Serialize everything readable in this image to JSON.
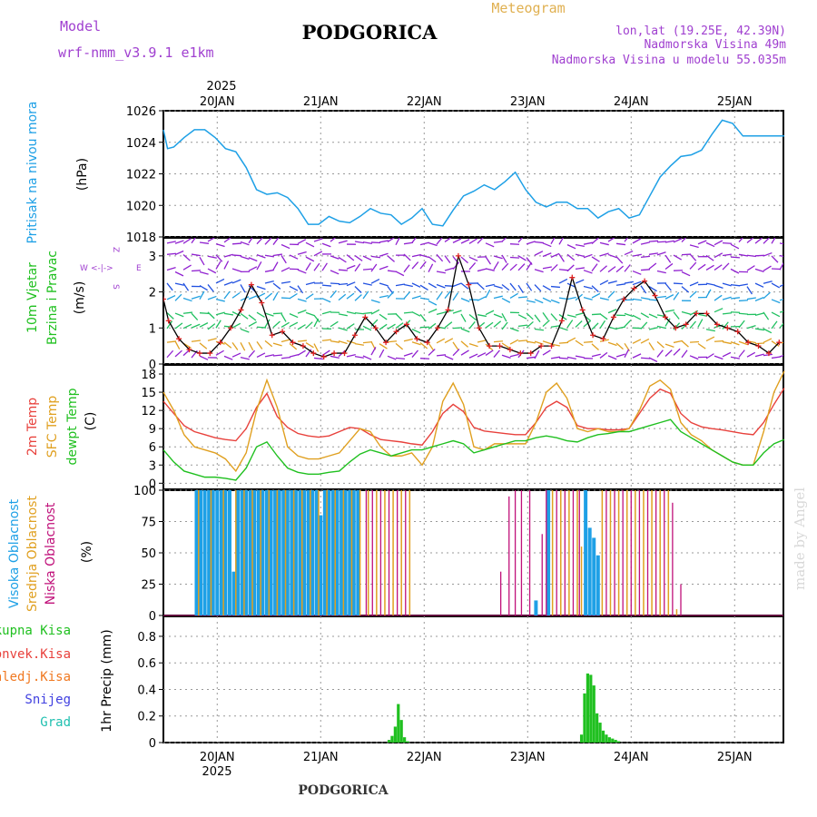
{
  "header": {
    "model_label": "Model",
    "model_name": "wrf-nmm_v3.9.1  e1km",
    "title": "PODGORICA",
    "subtitle": "Meteogram",
    "coords": "lon,lat (19.25E, 42.39N)",
    "elevation": "Nadmorska Visina 49m",
    "model_elevation": "Nadmorska Visina u modelu 55.035m",
    "footer": "PODGORICA",
    "watermark": "made by Angel",
    "year_top": "2025",
    "year_bottom": "2025"
  },
  "colors": {
    "pressure": "#1ea0e6",
    "temp2m": "#e8413c",
    "sfc": "#e0a020",
    "dewpt": "#20c020",
    "high_cloud": "#1ea0e6",
    "mid_cloud": "#e0a020",
    "low_cloud": "#c0107a",
    "precip": "#20c020",
    "wind_purple": "#9020d0",
    "wind_red": "#e02020"
  },
  "chart_data": [
    {
      "type": "line",
      "name": "pressure",
      "ylabel": "Pritisak na nivou mora",
      "unit": "(hPa)",
      "ylim": [
        1018,
        1026
      ],
      "yticks": [
        "1018",
        "1020",
        "1022",
        "1024",
        "1026"
      ],
      "x_days": [
        0,
        0.04,
        0.1,
        0.2,
        0.3,
        0.4,
        0.5,
        0.6,
        0.7,
        0.8,
        0.9,
        1.0,
        1.1,
        1.2,
        1.3,
        1.4,
        1.5,
        1.6,
        1.7,
        1.8,
        1.9,
        2.0,
        2.1,
        2.2,
        2.3,
        2.4,
        2.5,
        2.6,
        2.7,
        2.8,
        2.9,
        3.0,
        3.1,
        3.2,
        3.3,
        3.4,
        3.5,
        3.6,
        3.7,
        3.8,
        3.9,
        4.0,
        4.1,
        4.2,
        4.3,
        4.4,
        4.5,
        4.6,
        4.7,
        4.8,
        4.9,
        5.0,
        5.1,
        5.2,
        5.3,
        5.4,
        5.5,
        5.6,
        5.7,
        5.8,
        5.9,
        6.0
      ],
      "values": [
        1024.8,
        1023.6,
        1023.7,
        1024.3,
        1024.8,
        1024.8,
        1024.3,
        1023.6,
        1023.4,
        1022.4,
        1021.0,
        1020.7,
        1020.8,
        1020.5,
        1019.8,
        1018.8,
        1018.8,
        1019.3,
        1019.0,
        1018.9,
        1019.3,
        1019.8,
        1019.5,
        1019.4,
        1018.8,
        1019.2,
        1019.8,
        1018.8,
        1018.7,
        1019.7,
        1020.6,
        1020.9,
        1021.3,
        1021.0,
        1021.5,
        1022.1,
        1021.0,
        1020.2,
        1019.9,
        1020.2,
        1020.2,
        1019.8,
        1019.8,
        1019.2,
        1019.6,
        1019.8,
        1019.2,
        1019.4,
        1020.6,
        1021.8,
        1022.5,
        1023.1,
        1023.2,
        1023.5,
        1024.5,
        1025.4,
        1025.2,
        1024.4,
        1024.4,
        1024.4,
        1024.4,
        1024.4
      ]
    },
    {
      "type": "scatter",
      "name": "wind",
      "ylabel": "10m Vjetar",
      "ylabel2": "Brzina i Pravac",
      "unit": "(m/s)",
      "compass": [
        "Z",
        "W",
        "E",
        "S"
      ],
      "ylim": [
        0,
        3.5
      ],
      "yticks": [
        "0",
        "1",
        "2",
        "3"
      ],
      "speed_days": [
        0,
        0.05,
        0.15,
        0.25,
        0.35,
        0.45,
        0.55,
        0.65,
        0.75,
        0.85,
        0.95,
        1.05,
        1.15,
        1.25,
        1.35,
        1.45,
        1.55,
        1.65,
        1.75,
        1.85,
        1.95,
        2.05,
        2.15,
        2.25,
        2.35,
        2.45,
        2.55,
        2.65,
        2.75,
        2.85,
        2.95,
        3.05,
        3.15,
        3.25,
        3.35,
        3.45,
        3.55,
        3.65,
        3.75,
        3.85,
        3.95,
        4.05,
        4.15,
        4.25,
        4.35,
        4.45,
        4.55,
        4.65,
        4.75,
        4.85,
        4.95,
        5.05,
        5.15,
        5.25,
        5.35,
        5.45,
        5.55,
        5.65,
        5.75,
        5.85,
        5.95
      ],
      "speed_values": [
        1.8,
        1.2,
        0.7,
        0.4,
        0.3,
        0.3,
        0.6,
        1.0,
        1.5,
        2.2,
        1.7,
        0.8,
        0.9,
        0.6,
        0.5,
        0.3,
        0.2,
        0.3,
        0.3,
        0.8,
        1.3,
        1.0,
        0.6,
        0.9,
        1.1,
        0.7,
        0.6,
        1.0,
        1.5,
        3.0,
        2.2,
        1.0,
        0.5,
        0.5,
        0.4,
        0.3,
        0.3,
        0.5,
        0.5,
        1.2,
        2.4,
        1.5,
        0.8,
        0.7,
        1.3,
        1.8,
        2.1,
        2.3,
        1.9,
        1.3,
        1.0,
        1.1,
        1.4,
        1.4,
        1.1,
        1.0,
        0.9,
        0.6,
        0.5,
        0.3,
        0.6
      ]
    },
    {
      "type": "line",
      "name": "temperature",
      "ylabel": "2m Temp",
      "ylabel2": "SFC Temp",
      "ylabel3": "dewpt Temp",
      "unit": "(C)",
      "ylim": [
        -1,
        19.5
      ],
      "yticks": [
        "0",
        "3",
        "6",
        "9",
        "12",
        "15",
        "18"
      ],
      "x_days": [
        0,
        0.1,
        0.2,
        0.3,
        0.4,
        0.5,
        0.6,
        0.7,
        0.8,
        0.9,
        1.0,
        1.1,
        1.2,
        1.3,
        1.4,
        1.5,
        1.6,
        1.7,
        1.8,
        1.9,
        2.0,
        2.1,
        2.2,
        2.3,
        2.4,
        2.5,
        2.6,
        2.7,
        2.8,
        2.9,
        3.0,
        3.1,
        3.2,
        3.3,
        3.4,
        3.5,
        3.6,
        3.7,
        3.8,
        3.9,
        4.0,
        4.1,
        4.2,
        4.3,
        4.4,
        4.5,
        4.6,
        4.7,
        4.8,
        4.9,
        5.0,
        5.1,
        5.2,
        5.3,
        5.4,
        5.5,
        5.6,
        5.7,
        5.8,
        5.9,
        6.0
      ],
      "series": [
        {
          "name": "2m",
          "values": [
            13.5,
            11.5,
            9.5,
            8.5,
            8.0,
            7.5,
            7.2,
            7.0,
            9.0,
            12.5,
            14.8,
            11.0,
            9.2,
            8.2,
            7.8,
            7.6,
            7.8,
            8.5,
            9.2,
            9.0,
            8.0,
            7.2,
            7.0,
            6.8,
            6.5,
            6.3,
            8.5,
            11.5,
            13.0,
            11.8,
            9.2,
            8.6,
            8.4,
            8.2,
            8.0,
            8.0,
            10.0,
            12.5,
            13.5,
            12.5,
            9.5,
            9.0,
            9.0,
            8.8,
            8.8,
            9.0,
            11.5,
            14.0,
            15.5,
            14.8,
            11.5,
            10.0,
            9.3,
            9.0,
            8.8,
            8.5,
            8.2,
            8.0,
            10.0,
            13.0,
            15.7
          ]
        },
        {
          "name": "sfc",
          "values": [
            15.0,
            12.0,
            8.0,
            6.0,
            5.5,
            5.0,
            4.0,
            2.0,
            5.0,
            12.0,
            17.0,
            12.5,
            6.0,
            4.5,
            4.0,
            4.0,
            4.5,
            5.0,
            7.0,
            9.0,
            8.5,
            6.0,
            4.5,
            4.5,
            5.0,
            3.0,
            6.0,
            13.5,
            16.5,
            13.0,
            6.0,
            5.5,
            6.5,
            6.5,
            6.5,
            6.5,
            10.0,
            15.0,
            16.5,
            14.0,
            9.0,
            8.5,
            9.0,
            8.5,
            8.5,
            9.0,
            12.0,
            16.0,
            17.0,
            15.5,
            10.0,
            8.0,
            7.0,
            5.5,
            4.5,
            3.5,
            3.0,
            3.0,
            8.5,
            15.0,
            18.5
          ]
        },
        {
          "name": "dewpt",
          "values": [
            5.5,
            3.5,
            2.0,
            1.5,
            1.0,
            1.0,
            0.8,
            0.5,
            2.5,
            6.0,
            6.8,
            4.5,
            2.5,
            1.8,
            1.5,
            1.5,
            1.8,
            2.0,
            3.5,
            4.8,
            5.5,
            5.0,
            4.5,
            5.0,
            5.5,
            5.5,
            6.0,
            6.5,
            7.0,
            6.5,
            5.0,
            5.5,
            6.0,
            6.5,
            7.0,
            7.0,
            7.5,
            7.8,
            7.5,
            7.0,
            6.8,
            7.5,
            8.0,
            8.2,
            8.5,
            8.5,
            9.0,
            9.5,
            10.0,
            10.5,
            8.5,
            7.5,
            6.5,
            5.5,
            4.5,
            3.5,
            3.0,
            3.0,
            5.0,
            6.5,
            7.2
          ]
        }
      ]
    },
    {
      "type": "bar",
      "name": "cloud",
      "ylabel": "Visoka Oblacnost",
      "ylabel2": "Srednja Oblacnost",
      "ylabel3": "Niska Oblacnost",
      "unit": "(%)",
      "ylim": [
        0,
        100
      ],
      "yticks": [
        "0",
        "25",
        "50",
        "75",
        "100"
      ],
      "high_days": [
        0.32,
        0.36,
        0.4,
        0.44,
        0.48,
        0.52,
        0.56,
        0.6,
        0.64,
        0.68,
        0.72,
        0.76,
        0.8,
        0.84,
        0.88,
        0.92,
        0.96,
        1.0,
        1.04,
        1.08,
        1.12,
        1.16,
        1.2,
        1.24,
        1.28,
        1.32,
        1.36,
        1.4,
        1.44,
        1.48,
        1.52,
        1.56,
        1.6,
        1.64,
        1.68,
        1.72,
        1.76,
        1.8,
        1.84,
        1.88,
        3.6,
        3.72,
        4.08,
        4.12,
        4.16,
        4.2
      ],
      "high_values": [
        100,
        100,
        100,
        100,
        100,
        100,
        100,
        100,
        100,
        35,
        100,
        100,
        100,
        100,
        100,
        100,
        100,
        100,
        100,
        100,
        100,
        100,
        100,
        100,
        100,
        100,
        100,
        100,
        100,
        100,
        80,
        100,
        100,
        100,
        100,
        100,
        100,
        100,
        100,
        100,
        12,
        100,
        100,
        70,
        62,
        48
      ],
      "mid_days": [
        0.34,
        0.46,
        0.58,
        0.7,
        0.78,
        0.86,
        0.94,
        1.02,
        1.1,
        1.18,
        1.26,
        1.34,
        1.42,
        1.5,
        1.58,
        1.66,
        1.74,
        1.82,
        1.9,
        1.98,
        2.06,
        2.14,
        2.22,
        2.3,
        2.38,
        3.76,
        3.84,
        3.92,
        4.0,
        4.04,
        4.24,
        4.32,
        4.4,
        4.48,
        4.56,
        4.64,
        4.72,
        4.8,
        4.88,
        4.96
      ],
      "mid_values": [
        100,
        100,
        100,
        100,
        100,
        100,
        100,
        100,
        100,
        100,
        100,
        100,
        100,
        100,
        100,
        100,
        100,
        100,
        100,
        100,
        100,
        100,
        100,
        100,
        100,
        100,
        100,
        100,
        100,
        55,
        100,
        100,
        100,
        100,
        100,
        100,
        100,
        100,
        100,
        5
      ],
      "low_days": [
        1.96,
        2.02,
        2.1,
        2.18,
        2.26,
        2.34,
        3.26,
        3.34,
        3.4,
        3.46,
        3.54,
        3.66,
        3.7,
        3.8,
        3.88,
        3.96,
        4.02,
        4.28,
        4.36,
        4.44,
        4.52,
        4.6,
        4.68,
        4.76,
        4.84,
        4.92,
        5.0
      ],
      "low_values": [
        100,
        100,
        100,
        100,
        100,
        100,
        35,
        95,
        100,
        100,
        100,
        65,
        100,
        100,
        100,
        100,
        100,
        100,
        100,
        100,
        100,
        100,
        100,
        100,
        100,
        90,
        25
      ]
    },
    {
      "type": "bar",
      "name": "precip",
      "ylabel": "1hr Precip",
      "unit": "(mm)",
      "legend": [
        "Ukupna  Kisa",
        "Konvek.Kisa",
        "Zaledj.Kisa",
        "Snijeg",
        "Grad"
      ],
      "legend_colors": [
        "#20c020",
        "#e8413c",
        "#f07820",
        "#4040e0",
        "#20c0b0"
      ],
      "ylim": [
        0,
        0.95
      ],
      "yticks": [
        "0",
        "0.2",
        "0.4",
        "0.6",
        "0.8"
      ],
      "x_days": [
        2.18,
        2.21,
        2.24,
        2.27,
        2.3,
        2.33,
        2.36,
        4.04,
        4.07,
        4.1,
        4.13,
        4.16,
        4.19,
        4.22,
        4.25,
        4.28,
        4.31,
        4.34,
        4.37,
        4.4
      ],
      "values": [
        0.02,
        0.05,
        0.12,
        0.29,
        0.17,
        0.04,
        0.01,
        0.06,
        0.37,
        0.52,
        0.51,
        0.43,
        0.22,
        0.15,
        0.09,
        0.06,
        0.04,
        0.03,
        0.02,
        0.01
      ]
    }
  ],
  "xaxis": {
    "labels": [
      "20JAN",
      "21JAN",
      "22JAN",
      "23JAN",
      "24JAN",
      "25JAN"
    ]
  }
}
